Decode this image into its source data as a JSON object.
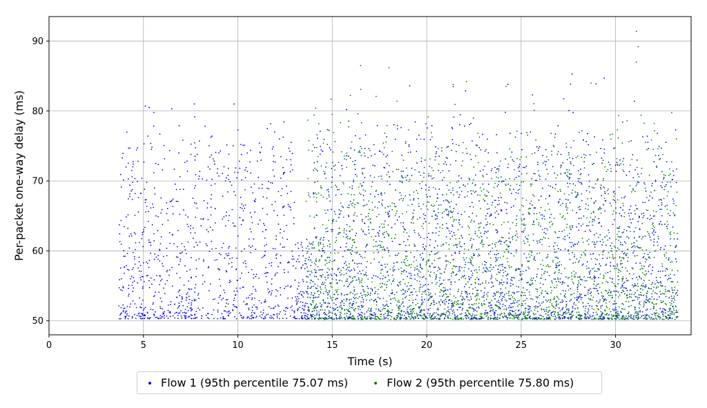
{
  "chart_data": {
    "type": "scatter",
    "xlabel": "Time (s)",
    "ylabel": "Per-packet one-way delay (ms)",
    "xlim": [
      0,
      34
    ],
    "ylim": [
      48,
      93.5
    ],
    "x_ticks": [
      0,
      5,
      10,
      15,
      20,
      25,
      30
    ],
    "y_ticks": [
      50,
      60,
      70,
      80,
      90
    ],
    "grid": true,
    "legend_position": "bottom-center",
    "series": [
      {
        "name": "Flow 1 (95th percentile 75.07 ms)",
        "color": "#0000ff",
        "x_range": [
          3.7,
          33.3
        ],
        "y_range": [
          50.3,
          85.3
        ],
        "sample_points": [
          [
            3.8,
            51.0
          ],
          [
            4.2,
            70.3
          ],
          [
            5.1,
            80.7
          ],
          [
            5.3,
            80.5
          ],
          [
            6.5,
            80.3
          ],
          [
            7.7,
            81.0
          ],
          [
            9.8,
            81.0
          ],
          [
            10.5,
            74.0
          ],
          [
            12.2,
            76.0
          ],
          [
            13.5,
            51.5
          ],
          [
            19.1,
            83.6
          ],
          [
            21.4,
            83.5
          ],
          [
            25.6,
            82.3
          ],
          [
            27.7,
            85.3
          ],
          [
            29.4,
            84.7
          ],
          [
            31.0,
            81.4
          ],
          [
            33.2,
            51.2
          ]
        ]
      },
      {
        "name": "Flow 2 (95th percentile 75.80 ms)",
        "color": "#008000",
        "x_range": [
          13.6,
          33.3
        ],
        "y_range": [
          50.2,
          91.4
        ],
        "sample_points": [
          [
            13.7,
            78.7
          ],
          [
            15.0,
            79.5
          ],
          [
            16.5,
            86.5
          ],
          [
            18.0,
            86.2
          ],
          [
            21.4,
            83.8
          ],
          [
            22.1,
            84.2
          ],
          [
            24.2,
            83.5
          ],
          [
            28.7,
            84.0
          ],
          [
            31.1,
            91.4
          ],
          [
            31.2,
            89.2
          ],
          [
            31.1,
            87.0
          ],
          [
            32.0,
            74.5
          ],
          [
            33.2,
            52.0
          ]
        ]
      }
    ]
  }
}
